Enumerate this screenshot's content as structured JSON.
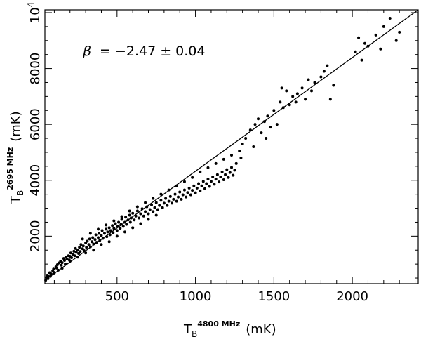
{
  "chart_data": {
    "type": "scatter",
    "title": "",
    "annotation": {
      "symbol": "β",
      "text": "= −2.47 ± 0.04"
    },
    "xlabel": {
      "base": "T",
      "sub": "B",
      "sup": "4800 MHz",
      "unit": "(mK)"
    },
    "ylabel": {
      "base": "T",
      "sub": "B",
      "sup": "2695 MHz",
      "unit": "(mK)"
    },
    "xlim": [
      40,
      2420
    ],
    "ylim": [
      300,
      10100
    ],
    "xticks": [
      {
        "value": 500,
        "label": "500"
      },
      {
        "value": 1000,
        "label": "1000"
      },
      {
        "value": 1500,
        "label": "1500"
      },
      {
        "value": 2000,
        "label": "2000"
      }
    ],
    "yticks": [
      {
        "value": 2000,
        "label": "2000"
      },
      {
        "value": 4000,
        "label": "4000"
      },
      {
        "value": 6000,
        "label": "6000"
      },
      {
        "value": 8000,
        "label": "8000"
      },
      {
        "value": 10000,
        "label": "10",
        "sup": "4"
      }
    ],
    "x_minor_step": 100,
    "y_minor_step": 500,
    "grid": false,
    "fit_line": {
      "x": [
        40,
        2420
      ],
      "y": [
        420,
        10100
      ]
    },
    "series": [
      {
        "values_xy": [
          [
            45,
            420
          ],
          [
            50,
            520
          ],
          [
            55,
            600
          ],
          [
            60,
            480
          ],
          [
            70,
            690
          ],
          [
            75,
            560
          ],
          [
            80,
            650
          ],
          [
            90,
            760
          ],
          [
            95,
            820
          ],
          [
            100,
            700
          ],
          [
            110,
            900
          ],
          [
            115,
            860
          ],
          [
            120,
            980
          ],
          [
            125,
            780
          ],
          [
            130,
            1040
          ],
          [
            140,
            1100
          ],
          [
            145,
            960
          ],
          [
            150,
            1050
          ],
          [
            160,
            1200
          ],
          [
            165,
            1130
          ],
          [
            170,
            1000
          ],
          [
            175,
            1250
          ],
          [
            180,
            1180
          ],
          [
            190,
            1300
          ],
          [
            195,
            1150
          ],
          [
            200,
            1280
          ],
          [
            205,
            1400
          ],
          [
            210,
            1230
          ],
          [
            220,
            1350
          ],
          [
            225,
            1460
          ],
          [
            230,
            1300
          ],
          [
            235,
            1560
          ],
          [
            240,
            1420
          ],
          [
            250,
            1500
          ],
          [
            255,
            1380
          ],
          [
            260,
            1600
          ],
          [
            265,
            1450
          ],
          [
            270,
            1700
          ],
          [
            280,
            1550
          ],
          [
            285,
            1650
          ],
          [
            290,
            1480
          ],
          [
            300,
            1760
          ],
          [
            305,
            1600
          ],
          [
            310,
            1820
          ],
          [
            320,
            1700
          ],
          [
            325,
            1900
          ],
          [
            330,
            1620
          ],
          [
            340,
            1800
          ],
          [
            345,
            1950
          ],
          [
            350,
            1720
          ],
          [
            360,
            1880
          ],
          [
            365,
            2050
          ],
          [
            370,
            1780
          ],
          [
            380,
            1950
          ],
          [
            385,
            2100
          ],
          [
            390,
            1850
          ],
          [
            400,
            2020
          ],
          [
            405,
            2200
          ],
          [
            410,
            1920
          ],
          [
            420,
            2100
          ],
          [
            430,
            2250
          ],
          [
            435,
            1980
          ],
          [
            440,
            2150
          ],
          [
            450,
            2300
          ],
          [
            455,
            2050
          ],
          [
            460,
            2200
          ],
          [
            470,
            2380
          ],
          [
            475,
            2120
          ],
          [
            480,
            2280
          ],
          [
            490,
            2450
          ],
          [
            500,
            2200
          ],
          [
            505,
            2350
          ],
          [
            510,
            2500
          ],
          [
            520,
            2280
          ],
          [
            525,
            2420
          ],
          [
            530,
            2600
          ],
          [
            540,
            2350
          ],
          [
            550,
            2500
          ],
          [
            555,
            2680
          ],
          [
            560,
            2420
          ],
          [
            570,
            2580
          ],
          [
            580,
            2750
          ],
          [
            585,
            2500
          ],
          [
            590,
            2650
          ],
          [
            600,
            2820
          ],
          [
            610,
            2580
          ],
          [
            620,
            2720
          ],
          [
            630,
            2900
          ],
          [
            640,
            2650
          ],
          [
            650,
            2800
          ],
          [
            660,
            2980
          ],
          [
            670,
            2720
          ],
          [
            680,
            2880
          ],
          [
            690,
            3050
          ],
          [
            700,
            2800
          ],
          [
            710,
            2950
          ],
          [
            720,
            3120
          ],
          [
            730,
            2880
          ],
          [
            740,
            3020
          ],
          [
            750,
            3200
          ],
          [
            760,
            2950
          ],
          [
            770,
            3100
          ],
          [
            780,
            3280
          ],
          [
            790,
            3020
          ],
          [
            800,
            3180
          ],
          [
            810,
            3350
          ],
          [
            820,
            3100
          ],
          [
            830,
            3250
          ],
          [
            840,
            3420
          ],
          [
            850,
            3180
          ],
          [
            860,
            3320
          ],
          [
            870,
            3500
          ],
          [
            880,
            3250
          ],
          [
            890,
            3400
          ],
          [
            900,
            3580
          ],
          [
            910,
            3320
          ],
          [
            920,
            3480
          ],
          [
            930,
            3650
          ],
          [
            940,
            3400
          ],
          [
            950,
            3560
          ],
          [
            960,
            3720
          ],
          [
            970,
            3480
          ],
          [
            980,
            3640
          ],
          [
            990,
            3800
          ],
          [
            1000,
            3550
          ],
          [
            1010,
            3720
          ],
          [
            1020,
            3880
          ],
          [
            1030,
            3620
          ],
          [
            1040,
            3800
          ],
          [
            1050,
            3960
          ],
          [
            1060,
            3700
          ],
          [
            1070,
            3880
          ],
          [
            1080,
            4040
          ],
          [
            1090,
            3780
          ],
          [
            1100,
            3960
          ],
          [
            1110,
            4120
          ],
          [
            1120,
            3860
          ],
          [
            1130,
            4040
          ],
          [
            1140,
            4200
          ],
          [
            1150,
            3940
          ],
          [
            1160,
            4120
          ],
          [
            1170,
            4300
          ],
          [
            1180,
            4020
          ],
          [
            1190,
            4200
          ],
          [
            1200,
            4380
          ],
          [
            1210,
            4100
          ],
          [
            1220,
            4280
          ],
          [
            1230,
            4460
          ],
          [
            1240,
            4180
          ],
          [
            1250,
            4360
          ],
          [
            300,
            1400
          ],
          [
            350,
            1500
          ],
          [
            400,
            1700
          ],
          [
            450,
            1800
          ],
          [
            500,
            2000
          ],
          [
            550,
            2150
          ],
          [
            600,
            2300
          ],
          [
            650,
            2450
          ],
          [
            700,
            2600
          ],
          [
            750,
            2750
          ],
          [
            200,
            1100
          ],
          [
            250,
            1250
          ],
          [
            150,
            850
          ],
          [
            100,
            680
          ],
          [
            60,
            560
          ],
          [
            280,
            1900
          ],
          [
            330,
            2100
          ],
          [
            380,
            2250
          ],
          [
            430,
            2400
          ],
          [
            480,
            2550
          ],
          [
            530,
            2700
          ],
          [
            580,
            2900
          ],
          [
            630,
            3050
          ],
          [
            680,
            3200
          ],
          [
            730,
            3350
          ],
          [
            780,
            3500
          ],
          [
            830,
            3650
          ],
          [
            880,
            3800
          ],
          [
            930,
            3950
          ],
          [
            980,
            4100
          ],
          [
            1030,
            4300
          ],
          [
            1080,
            4450
          ],
          [
            1130,
            4600
          ],
          [
            1180,
            4750
          ],
          [
            1230,
            4900
          ],
          [
            1280,
            5050
          ],
          [
            1300,
            5300
          ],
          [
            1320,
            5500
          ],
          [
            1350,
            5800
          ],
          [
            1380,
            6000
          ],
          [
            1400,
            6200
          ],
          [
            1420,
            5700
          ],
          [
            1440,
            6100
          ],
          [
            1450,
            5500
          ],
          [
            1460,
            6300
          ],
          [
            1480,
            5900
          ],
          [
            1500,
            6500
          ],
          [
            1520,
            6000
          ],
          [
            1540,
            6800
          ],
          [
            1550,
            7300
          ],
          [
            1560,
            6600
          ],
          [
            1580,
            7200
          ],
          [
            1600,
            6700
          ],
          [
            1620,
            7000
          ],
          [
            1640,
            6800
          ],
          [
            1650,
            7100
          ],
          [
            1680,
            7300
          ],
          [
            1700,
            6900
          ],
          [
            1720,
            7600
          ],
          [
            1740,
            7200
          ],
          [
            1760,
            7500
          ],
          [
            1800,
            7700
          ],
          [
            1820,
            7900
          ],
          [
            1840,
            8100
          ],
          [
            1860,
            6900
          ],
          [
            1880,
            7400
          ],
          [
            2020,
            8600
          ],
          [
            2040,
            9100
          ],
          [
            2060,
            8300
          ],
          [
            2080,
            8900
          ],
          [
            2100,
            8800
          ],
          [
            2150,
            9200
          ],
          [
            2180,
            8700
          ],
          [
            2200,
            9500
          ],
          [
            2240,
            9800
          ],
          [
            2280,
            9000
          ],
          [
            2300,
            9300
          ],
          [
            1370,
            5200
          ],
          [
            1290,
            4800
          ],
          [
            1260,
            4600
          ]
        ]
      }
    ]
  }
}
